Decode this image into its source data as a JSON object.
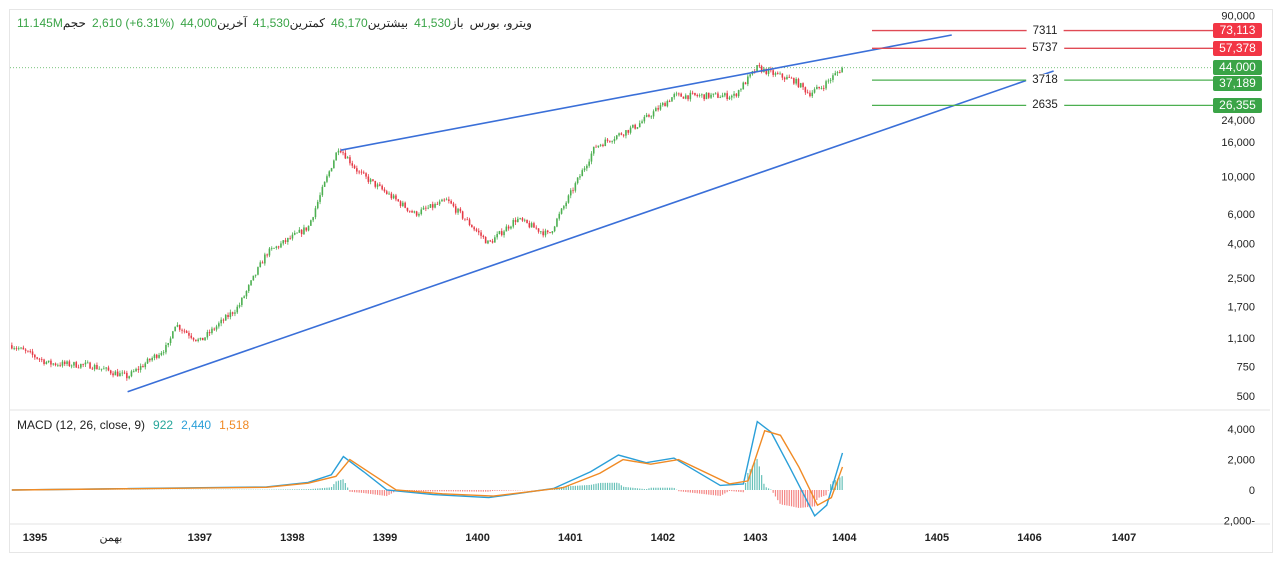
{
  "header": {
    "symbol": "ویترو، بورس",
    "open_label": "باز",
    "open": "41,530",
    "high_label": "بیشترین",
    "high": "46,170",
    "low_label": "کمترین",
    "low": "41,530",
    "close_label": "آخرین",
    "close": "44,000",
    "change": "2,610 (+6.31%)",
    "volume_label": "حجم",
    "volume": "11.145M"
  },
  "colors": {
    "up": "#4caf50",
    "down": "#e53945",
    "trend": "#3a6fd8",
    "macd": "#2a9fd8",
    "signal": "#f08a24"
  },
  "chart_data": [
    {
      "type": "candlestick",
      "scale": "log",
      "ylim": [
        450,
        95000
      ],
      "y_ticks": [
        "90,000",
        "24,000",
        "16,000",
        "10,000",
        "6,000",
        "4,000",
        "2,500",
        "1,700",
        "1,100",
        "750",
        "500"
      ],
      "y_tick_values": [
        90000,
        24000,
        16000,
        10000,
        6000,
        4000,
        2500,
        1700,
        1100,
        750,
        500
      ],
      "x_ticks": [
        "1395",
        "بهمن",
        "1397",
        "1398",
        "1399",
        "1400",
        "1401",
        "1402",
        "1403",
        "1404",
        "1405",
        "1406",
        "1407"
      ],
      "x_tick_values": [
        1395,
        1395.82,
        1396.78,
        1397.78,
        1398.78,
        1399.78,
        1400.78,
        1401.78,
        1402.78,
        1403.74,
        1404.74,
        1405.74,
        1406.76
      ],
      "price_path": [
        [
          1394.75,
          1000
        ],
        [
          1395.15,
          780
        ],
        [
          1395.6,
          760
        ],
        [
          1396.0,
          650
        ],
        [
          1396.45,
          1000
        ],
        [
          1396.5,
          1350
        ],
        [
          1396.78,
          1050
        ],
        [
          1397.2,
          1700
        ],
        [
          1397.5,
          3500
        ],
        [
          1397.95,
          5000
        ],
        [
          1398.28,
          15000
        ],
        [
          1398.5,
          10500
        ],
        [
          1399.1,
          6000
        ],
        [
          1399.45,
          7200
        ],
        [
          1399.9,
          4000
        ],
        [
          1400.2,
          5600
        ],
        [
          1400.55,
          4500
        ],
        [
          1401.05,
          15000
        ],
        [
          1401.5,
          20000
        ],
        [
          1401.9,
          30000
        ],
        [
          1402.55,
          30000
        ],
        [
          1402.8,
          44000
        ],
        [
          1403.0,
          40000
        ],
        [
          1403.2,
          37000
        ],
        [
          1403.36,
          31000
        ],
        [
          1403.5,
          34000
        ],
        [
          1403.72,
          44000
        ]
      ],
      "trendlines": [
        [
          [
            1398.3,
            14300
          ],
          [
            1404.9,
            68800
          ]
        ],
        [
          [
            1396.0,
            530
          ],
          [
            1406.0,
            42100
          ]
        ]
      ],
      "levels": [
        {
          "label": "7311",
          "tag": "73,113",
          "price": 73113,
          "color": "red"
        },
        {
          "label": "5737",
          "tag": "57,378",
          "price": 57378,
          "color": "red"
        },
        {
          "label": "3718",
          "tag": "37,189",
          "price": 37189,
          "color": "green"
        },
        {
          "label": "2635",
          "tag": "26,355",
          "price": 26355,
          "color": "green"
        }
      ],
      "last_price": {
        "tag": "44,000",
        "price": 44000
      }
    },
    {
      "type": "line",
      "title": "MACD (12, 26, close, 9)",
      "values_shown": {
        "hist": "922",
        "macd": "2,440",
        "signal": "1,518"
      },
      "y_ticks": [
        "4,000",
        "2,000",
        "0",
        "2,000-"
      ],
      "y_tick_values": [
        4000,
        2000,
        0,
        -2000
      ],
      "ylim": [
        -2200,
        4600
      ],
      "macd": [
        [
          1394.75,
          0
        ],
        [
          1397.5,
          200
        ],
        [
          1397.95,
          500
        ],
        [
          1398.2,
          1000
        ],
        [
          1398.33,
          2200
        ],
        [
          1398.55,
          1200
        ],
        [
          1398.8,
          0
        ],
        [
          1399.3,
          -300
        ],
        [
          1399.9,
          -500
        ],
        [
          1400.6,
          100
        ],
        [
          1401.0,
          1200
        ],
        [
          1401.3,
          2300
        ],
        [
          1401.6,
          1800
        ],
        [
          1401.9,
          2100
        ],
        [
          1402.4,
          300
        ],
        [
          1402.65,
          400
        ],
        [
          1402.8,
          4500
        ],
        [
          1402.95,
          3800
        ],
        [
          1403.15,
          1500
        ],
        [
          1403.42,
          -1700
        ],
        [
          1403.55,
          -1000
        ],
        [
          1403.72,
          2440
        ]
      ],
      "signal": [
        [
          1394.75,
          0
        ],
        [
          1397.5,
          180
        ],
        [
          1397.95,
          450
        ],
        [
          1398.25,
          900
        ],
        [
          1398.4,
          2000
        ],
        [
          1398.65,
          1000
        ],
        [
          1398.9,
          0
        ],
        [
          1399.4,
          -250
        ],
        [
          1399.95,
          -400
        ],
        [
          1400.7,
          150
        ],
        [
          1401.1,
          1100
        ],
        [
          1401.35,
          2000
        ],
        [
          1401.65,
          1700
        ],
        [
          1401.95,
          2000
        ],
        [
          1402.5,
          400
        ],
        [
          1402.7,
          600
        ],
        [
          1402.88,
          3900
        ],
        [
          1403.05,
          3600
        ],
        [
          1403.25,
          1500
        ],
        [
          1403.45,
          -1000
        ],
        [
          1403.6,
          -500
        ],
        [
          1403.72,
          1518
        ]
      ]
    }
  ]
}
